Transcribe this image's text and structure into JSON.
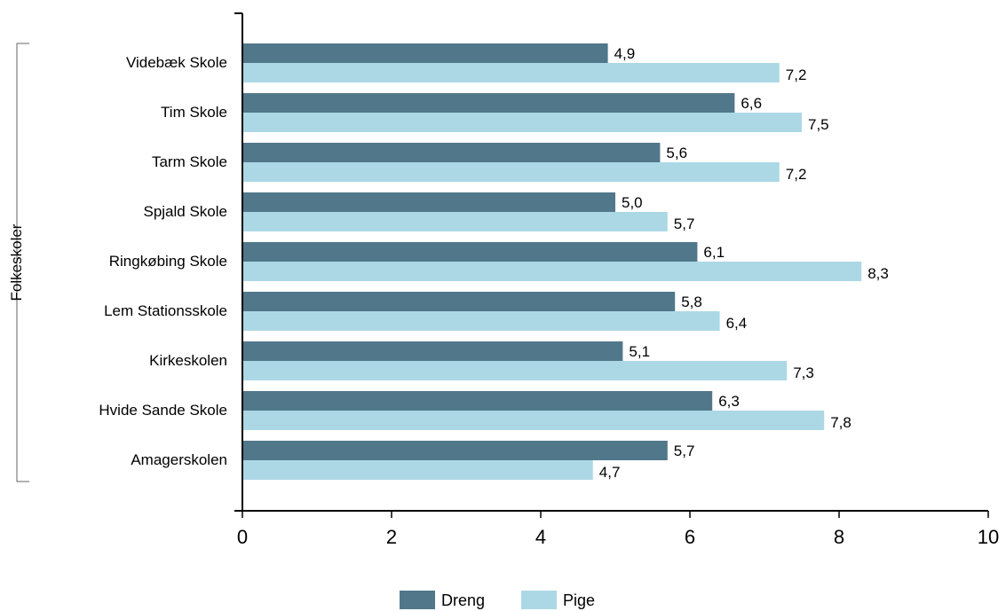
{
  "chart_data": {
    "type": "bar",
    "orientation": "horizontal",
    "group_label": "Folkeskoler",
    "categories": [
      "Videbæk Skole",
      "Tim Skole",
      "Tarm Skole",
      "Spjald Skole",
      "Ringkøbing Skole",
      "Lem Stationsskole",
      "Kirkeskolen",
      "Hvide Sande Skole",
      "Amagerskolen"
    ],
    "series": [
      {
        "name": "Dreng",
        "color": "#51778a",
        "values": [
          4.9,
          6.6,
          5.6,
          5.0,
          6.1,
          5.8,
          5.1,
          6.3,
          5.7
        ],
        "labels": [
          "4,9",
          "6,6",
          "5,6",
          "5,0",
          "6,1",
          "5,8",
          "5,1",
          "6,3",
          "5,7"
        ]
      },
      {
        "name": "Pige",
        "color": "#acd8e6",
        "values": [
          7.2,
          7.5,
          7.2,
          5.7,
          8.3,
          6.4,
          7.3,
          7.8,
          4.7
        ],
        "labels": [
          "7,2",
          "7,5",
          "7,2",
          "5,7",
          "8,3",
          "6,4",
          "7,3",
          "7,8",
          "4,7"
        ]
      }
    ],
    "xlim": [
      0,
      10
    ],
    "xticks": [
      0,
      2,
      4,
      6,
      8,
      10
    ],
    "xtick_labels": [
      "0",
      "2",
      "4",
      "6",
      "8",
      "10"
    ],
    "grid": false,
    "legend_position": "bottom-center"
  }
}
